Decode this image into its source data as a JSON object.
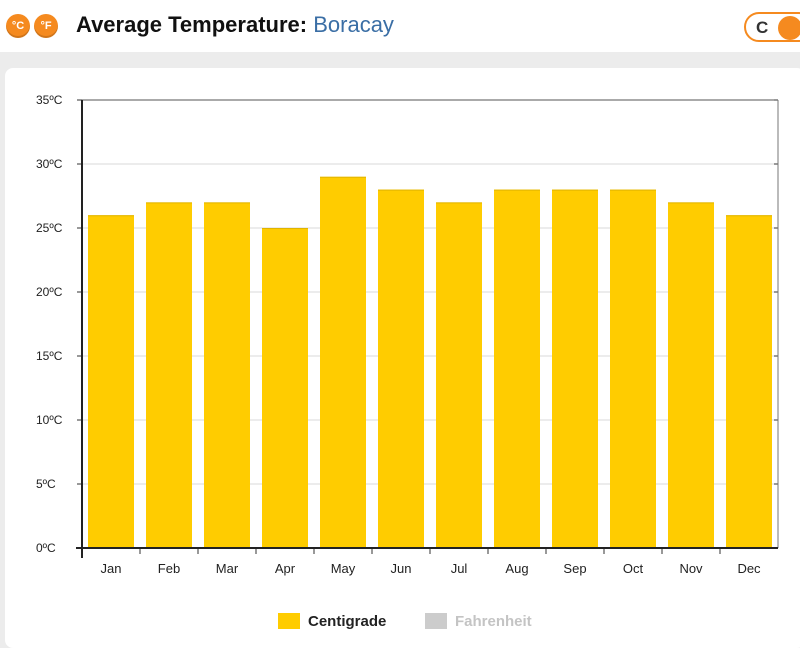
{
  "header": {
    "celsius_icon": "°C",
    "fahrenheit_icon": "°F",
    "title_label": "Average Temperature:",
    "title_place": "Boracay",
    "toggle_label": "C"
  },
  "colors": {
    "accent": "#f58a1f",
    "bar": "#ffcc00",
    "fahrenheit": "#cccccc",
    "place": "#3a6ea5"
  },
  "chart_data": {
    "type": "bar",
    "title": "",
    "xlabel": "",
    "ylabel": "",
    "categories": [
      "Jan",
      "Feb",
      "Mar",
      "Apr",
      "May",
      "Jun",
      "Jul",
      "Aug",
      "Sep",
      "Oct",
      "Nov",
      "Dec"
    ],
    "series": [
      {
        "name": "Centigrade",
        "values": [
          26,
          27,
          27,
          25,
          29,
          28,
          27,
          28,
          28,
          28,
          27,
          26
        ]
      }
    ],
    "ylim": [
      0,
      35
    ],
    "y_ticks": [
      "0ºC",
      "5ºC",
      "10ºC",
      "15ºC",
      "20ºC",
      "25ºC",
      "30ºC",
      "35ºC"
    ],
    "grid": true,
    "legend_position": "bottom",
    "legend": [
      {
        "label": "Centigrade",
        "active": true
      },
      {
        "label": "Fahrenheit",
        "active": false
      }
    ]
  }
}
